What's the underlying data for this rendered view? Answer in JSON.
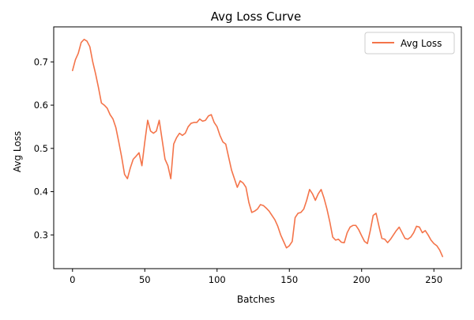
{
  "chart_data": {
    "type": "line",
    "title": "Avg Loss Curve",
    "xlabel": "Batches",
    "ylabel": "Avg Loss",
    "xlim": [
      -13,
      269
    ],
    "ylim": [
      0.222,
      0.781
    ],
    "xticks": [
      0,
      50,
      100,
      150,
      200,
      250
    ],
    "yticks": [
      0.3,
      0.4,
      0.5,
      0.6,
      0.7
    ],
    "ytick_labels": [
      "0.3",
      "0.4",
      "0.5",
      "0.6",
      "0.7"
    ],
    "grid": false,
    "legend_position": "top-right",
    "series": [
      {
        "name": "Avg Loss",
        "color": "#f4744a",
        "x": [
          0,
          2,
          4,
          6,
          8,
          10,
          12,
          14,
          16,
          18,
          20,
          22,
          24,
          26,
          28,
          30,
          32,
          34,
          36,
          38,
          40,
          42,
          44,
          46,
          48,
          50,
          52,
          54,
          56,
          58,
          60,
          62,
          64,
          66,
          68,
          70,
          72,
          74,
          76,
          78,
          80,
          82,
          84,
          86,
          88,
          90,
          92,
          94,
          96,
          98,
          100,
          102,
          104,
          106,
          108,
          110,
          112,
          114,
          116,
          118,
          120,
          122,
          124,
          126,
          128,
          130,
          132,
          134,
          136,
          138,
          140,
          142,
          144,
          146,
          148,
          150,
          152,
          154,
          156,
          158,
          160,
          162,
          164,
          166,
          168,
          170,
          172,
          174,
          176,
          178,
          180,
          182,
          184,
          186,
          188,
          190,
          192,
          194,
          196,
          198,
          200,
          202,
          204,
          206,
          208,
          210,
          212,
          214,
          216,
          218,
          220,
          222,
          224,
          226,
          228,
          230,
          232,
          234,
          236,
          238,
          240,
          242,
          244,
          246,
          248,
          250,
          252,
          254,
          256
        ],
        "y": [
          0.68,
          0.705,
          0.72,
          0.745,
          0.752,
          0.748,
          0.735,
          0.7,
          0.672,
          0.64,
          0.605,
          0.6,
          0.593,
          0.578,
          0.568,
          0.548,
          0.515,
          0.48,
          0.44,
          0.43,
          0.455,
          0.475,
          0.482,
          0.49,
          0.46,
          0.515,
          0.565,
          0.54,
          0.535,
          0.54,
          0.565,
          0.52,
          0.475,
          0.46,
          0.43,
          0.51,
          0.525,
          0.535,
          0.53,
          0.535,
          0.55,
          0.558,
          0.56,
          0.56,
          0.568,
          0.563,
          0.565,
          0.575,
          0.578,
          0.56,
          0.55,
          0.53,
          0.515,
          0.51,
          0.48,
          0.45,
          0.43,
          0.41,
          0.425,
          0.42,
          0.41,
          0.375,
          0.352,
          0.355,
          0.36,
          0.37,
          0.368,
          0.362,
          0.355,
          0.345,
          0.335,
          0.32,
          0.3,
          0.285,
          0.27,
          0.275,
          0.285,
          0.34,
          0.35,
          0.352,
          0.36,
          0.38,
          0.405,
          0.395,
          0.38,
          0.395,
          0.405,
          0.385,
          0.36,
          0.33,
          0.295,
          0.288,
          0.29,
          0.283,
          0.282,
          0.305,
          0.318,
          0.322,
          0.322,
          0.312,
          0.298,
          0.285,
          0.28,
          0.31,
          0.345,
          0.35,
          0.32,
          0.292,
          0.29,
          0.282,
          0.29,
          0.3,
          0.31,
          0.318,
          0.305,
          0.292,
          0.29,
          0.295,
          0.305,
          0.32,
          0.318,
          0.305,
          0.31,
          0.3,
          0.288,
          0.28,
          0.275,
          0.265,
          0.25
        ]
      }
    ]
  }
}
